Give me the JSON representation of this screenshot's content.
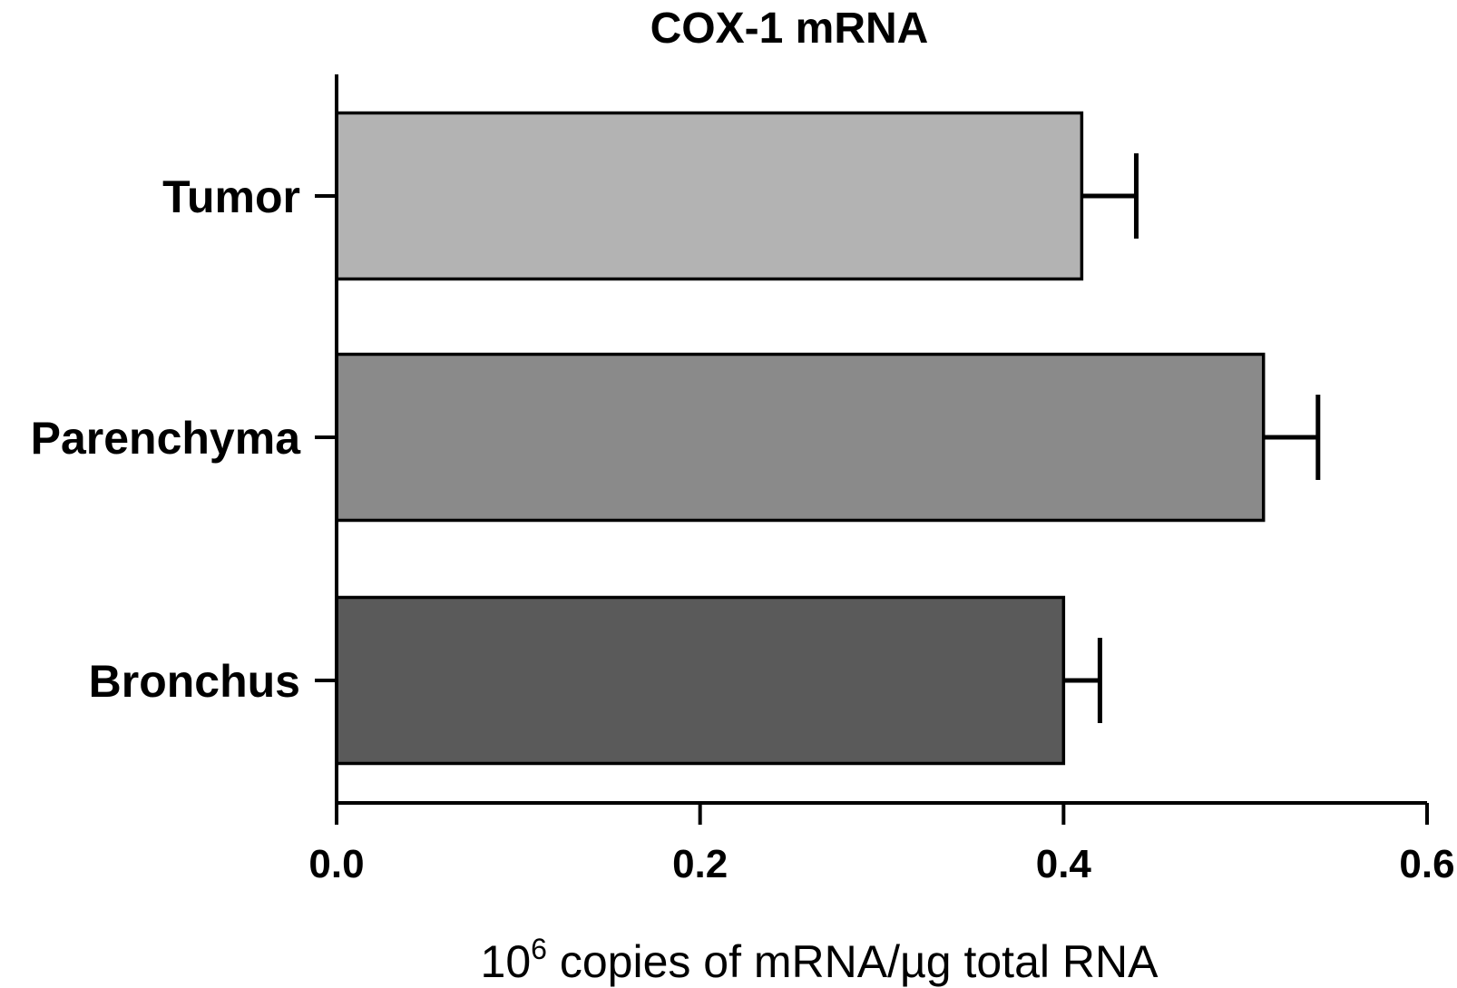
{
  "chart_data": {
    "type": "bar",
    "orientation": "horizontal",
    "title": "COX-1 mRNA",
    "xlabel": {
      "base": "10",
      "superscript": "6",
      "rest": " copies of mRNA/µg total RNA"
    },
    "ylabel": "",
    "categories": [
      "Tumor",
      "Parenchyma",
      "Bronchus"
    ],
    "values": [
      0.41,
      0.51,
      0.4
    ],
    "errors": [
      0.03,
      0.03,
      0.02
    ],
    "colors": [
      "#b3b3b3",
      "#8a8a8a",
      "#5a5a5a"
    ],
    "xlim": [
      0.0,
      0.6
    ],
    "xticks": [
      "0.0",
      "0.2",
      "0.4",
      "0.6"
    ],
    "xtick_values": [
      0.0,
      0.2,
      0.4,
      0.6
    ],
    "grid": false,
    "legend": "none"
  }
}
